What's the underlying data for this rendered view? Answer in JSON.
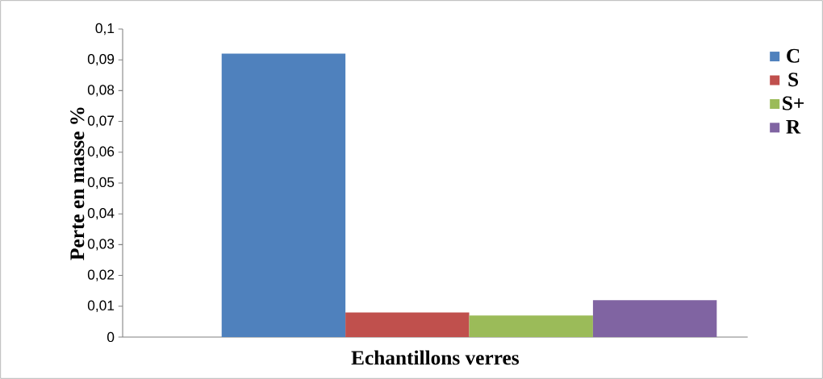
{
  "chart_data": {
    "type": "bar",
    "xlabel": "Echantillons verres",
    "ylabel": "Perte en masse %",
    "categories": [
      null
    ],
    "series": [
      {
        "name": "C",
        "color": "#4f81bd",
        "values": [
          0.092
        ]
      },
      {
        "name": "S",
        "color": "#c0504d",
        "values": [
          0.008
        ]
      },
      {
        "name": "S+",
        "color": "#9bbb59",
        "values": [
          0.007
        ]
      },
      {
        "name": "R",
        "color": "#8064a2",
        "values": [
          0.012
        ]
      }
    ],
    "ylim": [
      0,
      0.1
    ],
    "yticks": [
      0,
      {
        "value": 0.01,
        "label": "0,01"
      },
      {
        "value": 0.02,
        "label": "0,02"
      },
      {
        "value": 0.03,
        "label": "0,03"
      },
      {
        "value": 0.04,
        "label": "0,04"
      },
      {
        "value": 0.05,
        "label": "0,05"
      },
      {
        "value": 0.06,
        "label": "0,06"
      },
      {
        "value": 0.07,
        "label": "0,07"
      },
      {
        "value": 0.08,
        "label": "0,08"
      },
      {
        "value": 0.09,
        "label": "0,09"
      },
      {
        "value": 0.1,
        "label": "0,1"
      }
    ],
    "legend": "right"
  }
}
